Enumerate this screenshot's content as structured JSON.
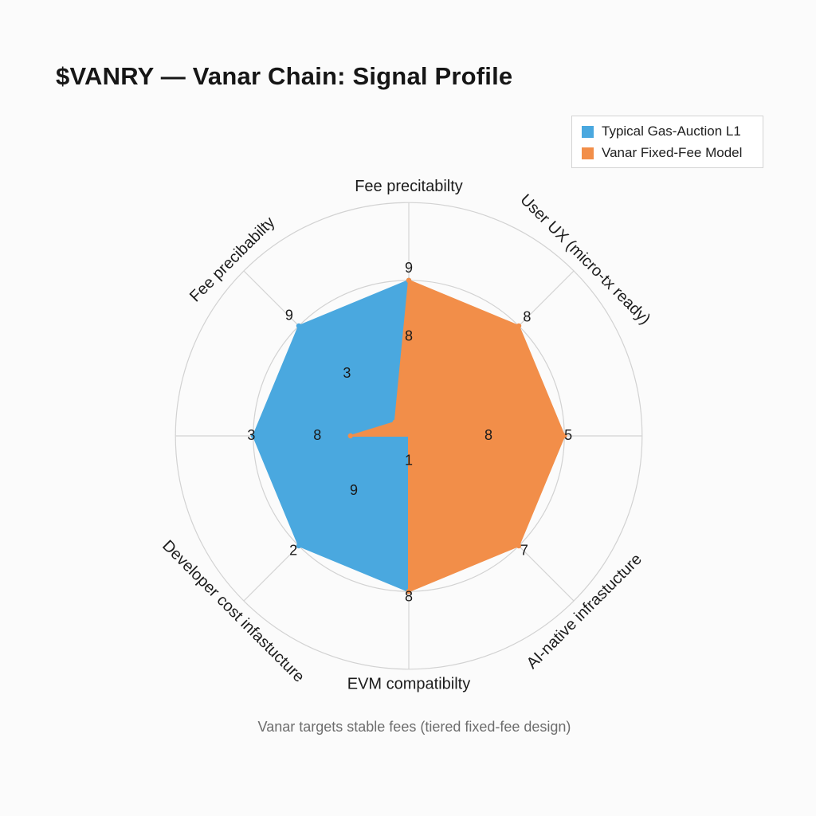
{
  "title": "$VANRY — Vanar Chain: Signal Profile",
  "caption": "Vanar targets stable fees (tiered fixed-fee design)",
  "legend": [
    {
      "name": "Typical Gas-Auction L1",
      "color": "#4aa8df"
    },
    {
      "name": "Vanar Fixed-Fee Model",
      "color": "#f28e49"
    }
  ],
  "chart_data": {
    "type": "radar",
    "axes": [
      "Fee precitabilty",
      "User UX (micro-tx ready)",
      "",
      "AI-native infrastucture",
      "EVM compatibilty",
      "Developer cost infastucture",
      "",
      "Fee precibabilty"
    ],
    "rlim": [
      0,
      10
    ],
    "rings": 4,
    "grid": true,
    "legend_position": "top-right",
    "series": [
      {
        "name": "Typical Gas-Auction L1",
        "color": "#4aa8df",
        "values": [
          8,
          0,
          0,
          0,
          8,
          8,
          8,
          8
        ]
      },
      {
        "name": "Vanar Fixed-Fee Model",
        "color": "#f28e49",
        "values": [
          8,
          8,
          8,
          8,
          8,
          0,
          3,
          1
        ]
      }
    ],
    "value_labels": [
      {
        "text": "9",
        "axis": 0,
        "r": 8.6
      },
      {
        "text": "8",
        "axis": 0,
        "r": 5.1
      },
      {
        "text": "8",
        "axis": 1,
        "r": 8.6
      },
      {
        "text": "5",
        "axis": 2,
        "r": 8.2
      },
      {
        "text": "8",
        "axis": 2,
        "r": 4.1
      },
      {
        "text": "7",
        "axis": 3,
        "r": 8.4
      },
      {
        "text": "8",
        "axis": 4,
        "r": 8.3
      },
      {
        "text": "2",
        "axis": 5,
        "r": 8.4
      },
      {
        "text": "9",
        "axis": 5,
        "r": 4.0
      },
      {
        "text": "3",
        "axis": 6,
        "r": 8.1
      },
      {
        "text": "8",
        "axis": 6,
        "r": 4.7
      },
      {
        "text": "9",
        "axis": 7,
        "r": 8.7
      },
      {
        "text": "3",
        "axis": 7,
        "r": 4.5
      },
      {
        "text": "1",
        "axis": 4,
        "r": 1.3
      }
    ]
  }
}
